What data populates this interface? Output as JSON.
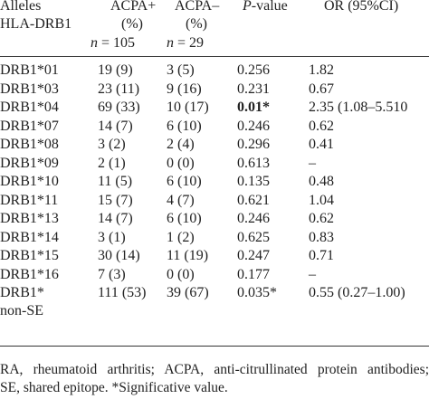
{
  "header": {
    "alleles": [
      "Alleles",
      "HLA-DRB1"
    ],
    "acpa_pos": [
      "ACPA+",
      "(%)"
    ],
    "acpa_neg": [
      "ACPA–",
      "(%)"
    ],
    "n_italic": "n",
    "n_pos_rest": " = 105",
    "n_neg_rest": " = 29",
    "p_italic": "P",
    "p_rest": "-value",
    "or": "OR (95%CI)"
  },
  "rows": [
    {
      "allele": "DRB1*01",
      "pos": "19 (9)",
      "neg": "3 (5)",
      "p": "0.256",
      "p_bold": false,
      "or": "1.82"
    },
    {
      "allele": "DRB1*03",
      "pos": "23 (11)",
      "neg": "9 (16)",
      "p": "0.231",
      "p_bold": false,
      "or": "0.67"
    },
    {
      "allele": "DRB1*04",
      "pos": "69 (33)",
      "neg": "10 (17)",
      "p": "0.01*",
      "p_bold": true,
      "or": "2.35 (1.08–5.510"
    },
    {
      "allele": "DRB1*07",
      "pos": "14 (7)",
      "neg": "6 (10)",
      "p": "0.246",
      "p_bold": false,
      "or": "0.62"
    },
    {
      "allele": "DRB1*08",
      "pos": "3 (2)",
      "neg": "2 (4)",
      "p": "0.296",
      "p_bold": false,
      "or": "0.41"
    },
    {
      "allele": "DRB1*09",
      "pos": "2 (1)",
      "neg": "0 (0)",
      "p": "0.613",
      "p_bold": false,
      "or": "–"
    },
    {
      "allele": "DRB1*10",
      "pos": "11 (5)",
      "neg": "6 (10)",
      "p": "0.135",
      "p_bold": false,
      "or": "0.48"
    },
    {
      "allele": "DRB1*11",
      "pos": "15 (7)",
      "neg": "4 (7)",
      "p": "0.621",
      "p_bold": false,
      "or": "1.04"
    },
    {
      "allele": "DRB1*13",
      "pos": "14 (7)",
      "neg": "6 (10)",
      "p": "0.246",
      "p_bold": false,
      "or": "0.62"
    },
    {
      "allele": "DRB1*14",
      "pos": "3 (1)",
      "neg": "1 (2)",
      "p": "0.625",
      "p_bold": false,
      "or": "0.83"
    },
    {
      "allele": "DRB1*15",
      "pos": "30 (14)",
      "neg": "11 (19)",
      "p": "0.247",
      "p_bold": false,
      "or": "0.71"
    },
    {
      "allele": "DRB1*16",
      "pos": "7 (3)",
      "neg": "0 (0)",
      "p": "0.177",
      "p_bold": false,
      "or": "–"
    },
    {
      "allele": "DRB1*",
      "allele2": "non-SE",
      "pos": "111 (53)",
      "neg": "39 (67)",
      "p": "0.035*",
      "p_bold": false,
      "or": "0.55 (0.27–1.00)"
    }
  ],
  "footnote": {
    "line1": "RA, rheumatoid arthritis; ACPA, anti-citrullinated protein antibodies;",
    "line2": "SE, shared epitope. *Significative value."
  }
}
